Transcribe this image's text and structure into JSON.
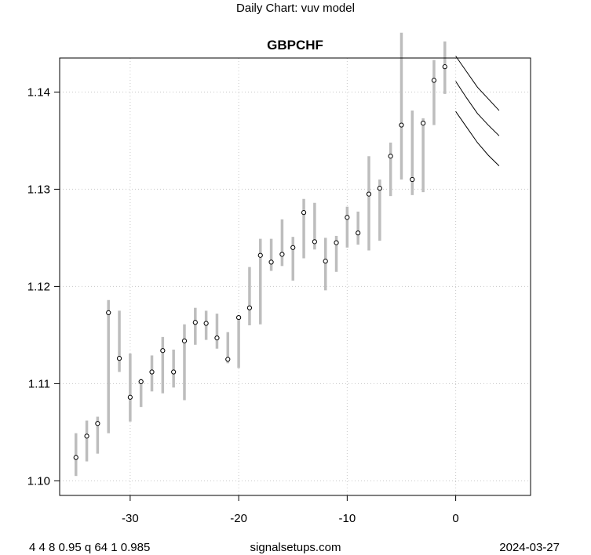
{
  "header": {
    "chart_caption": "Daily Chart: vuv model"
  },
  "footer": {
    "params": "4 4 8 0.95 q 64 1 0.985",
    "site": "signalsetups.com",
    "date": "2024-03-27"
  },
  "colors": {
    "range_bar": "#bdbdbd",
    "grid": "#c8c8c8",
    "forecast_line": "#000000",
    "point_fill": "#ffffff"
  },
  "chart_data": {
    "type": "line",
    "title": "GBPCHF",
    "xlabel": "",
    "ylabel": "",
    "xlim": [
      -36.5,
      6.9
    ],
    "ylim": [
      1.0985,
      1.1435
    ],
    "grid": true,
    "xticks": [
      -30,
      -20,
      -10,
      0
    ],
    "yticks": [
      1.1,
      1.11,
      1.12,
      1.13,
      1.14
    ],
    "xtick_labels": [
      "-30",
      "-20",
      "-10",
      "0"
    ],
    "ytick_labels": [
      "1.10",
      "1.11",
      "1.12",
      "1.13",
      "1.14"
    ],
    "daily": [
      {
        "x": -35,
        "close": 1.1024,
        "low": 1.1005,
        "high": 1.1049
      },
      {
        "x": -34,
        "close": 1.1046,
        "low": 1.102,
        "high": 1.1062
      },
      {
        "x": -33,
        "close": 1.1059,
        "low": 1.1028,
        "high": 1.1066
      },
      {
        "x": -32,
        "close": 1.1173,
        "low": 1.1049,
        "high": 1.1186
      },
      {
        "x": -31,
        "close": 1.1126,
        "low": 1.1112,
        "high": 1.1175
      },
      {
        "x": -30,
        "close": 1.1086,
        "low": 1.1061,
        "high": 1.1131
      },
      {
        "x": -29,
        "close": 1.1102,
        "low": 1.1076,
        "high": 1.1105
      },
      {
        "x": -28,
        "close": 1.1112,
        "low": 1.1092,
        "high": 1.1129
      },
      {
        "x": -27,
        "close": 1.1134,
        "low": 1.109,
        "high": 1.1148
      },
      {
        "x": -26,
        "close": 1.1112,
        "low": 1.1096,
        "high": 1.1135
      },
      {
        "x": -25,
        "close": 1.1144,
        "low": 1.1083,
        "high": 1.1161
      },
      {
        "x": -24,
        "close": 1.1163,
        "low": 1.114,
        "high": 1.1178
      },
      {
        "x": -23,
        "close": 1.1162,
        "low": 1.1145,
        "high": 1.1175
      },
      {
        "x": -22,
        "close": 1.1147,
        "low": 1.1136,
        "high": 1.1172
      },
      {
        "x": -21,
        "close": 1.1125,
        "low": 1.1121,
        "high": 1.1153
      },
      {
        "x": -20,
        "close": 1.1168,
        "low": 1.1116,
        "high": 1.117
      },
      {
        "x": -19,
        "close": 1.1178,
        "low": 1.116,
        "high": 1.122
      },
      {
        "x": -18,
        "close": 1.1232,
        "low": 1.1161,
        "high": 1.1249
      },
      {
        "x": -17,
        "close": 1.1225,
        "low": 1.1216,
        "high": 1.1249
      },
      {
        "x": -16,
        "close": 1.1233,
        "low": 1.1221,
        "high": 1.1269
      },
      {
        "x": -15,
        "close": 1.124,
        "low": 1.1206,
        "high": 1.1251
      },
      {
        "x": -14,
        "close": 1.1276,
        "low": 1.1229,
        "high": 1.129
      },
      {
        "x": -13,
        "close": 1.1246,
        "low": 1.1238,
        "high": 1.1286
      },
      {
        "x": -12,
        "close": 1.1226,
        "low": 1.1196,
        "high": 1.125
      },
      {
        "x": -11,
        "close": 1.1245,
        "low": 1.1215,
        "high": 1.1252
      },
      {
        "x": -10,
        "close": 1.1271,
        "low": 1.124,
        "high": 1.1282
      },
      {
        "x": -9,
        "close": 1.1255,
        "low": 1.1243,
        "high": 1.1277
      },
      {
        "x": -8,
        "close": 1.1295,
        "low": 1.1237,
        "high": 1.1334
      },
      {
        "x": -7,
        "close": 1.1301,
        "low": 1.1247,
        "high": 1.131
      },
      {
        "x": -6,
        "close": 1.1334,
        "low": 1.1293,
        "high": 1.1348
      },
      {
        "x": -5,
        "close": 1.1366,
        "low": 1.131,
        "high": 1.1461
      },
      {
        "x": -4,
        "close": 1.131,
        "low": 1.1294,
        "high": 1.1381
      },
      {
        "x": -3,
        "close": 1.1368,
        "low": 1.1297,
        "high": 1.1373
      },
      {
        "x": -2,
        "close": 1.1412,
        "low": 1.1366,
        "high": 1.1433
      },
      {
        "x": -1,
        "close": 1.1426,
        "low": 1.1398,
        "high": 1.1452
      }
    ],
    "forecast": [
      {
        "name": "upper",
        "x": [
          0,
          1,
          2,
          3,
          4
        ],
        "y": [
          1.1437,
          1.1421,
          1.1405,
          1.1393,
          1.1381
        ]
      },
      {
        "name": "middle",
        "x": [
          0,
          1,
          2,
          3,
          4
        ],
        "y": [
          1.1411,
          1.1394,
          1.1378,
          1.1366,
          1.1355
        ]
      },
      {
        "name": "lower",
        "x": [
          0,
          1,
          2,
          3,
          4
        ],
        "y": [
          1.138,
          1.1364,
          1.1348,
          1.1335,
          1.1324
        ]
      }
    ]
  }
}
